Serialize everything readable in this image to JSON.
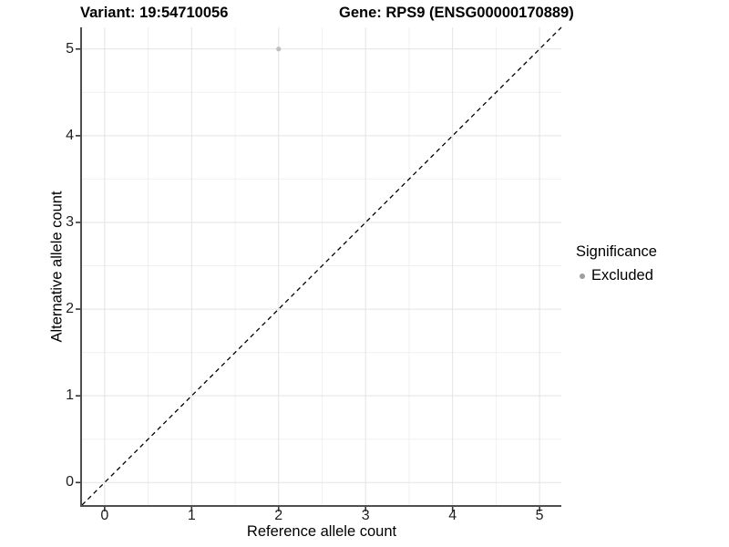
{
  "title": {
    "variant": "Variant: 19:54710056",
    "gene": "Gene: RPS9 (ENSG00000170889)"
  },
  "axes": {
    "x_label": "Reference allele count",
    "y_label": "Alternative allele count"
  },
  "legend": {
    "title": "Significance",
    "items": [
      {
        "label": "Excluded",
        "marker_color": "#9e9e9e"
      }
    ]
  },
  "colors": {
    "background": "#ffffff",
    "grid_major": "#e3e3e3",
    "grid_minor": "#f0f0f0",
    "axis_line": "#4f4f4f",
    "tick_mark": "#333333",
    "tick_label": "#1f1f1f",
    "identity_line": "#000000"
  },
  "chart_data": {
    "type": "scatter",
    "title": "Variant: 19:54710056    Gene: RPS9 (ENSG00000170889)",
    "xlabel": "Reference allele count",
    "ylabel": "Alternative allele count",
    "xlim": [
      -0.26,
      5.25
    ],
    "ylim": [
      -0.26,
      5.25
    ],
    "x_ticks": [
      0,
      1,
      2,
      3,
      4,
      5
    ],
    "y_ticks": [
      0,
      1,
      2,
      3,
      4,
      5
    ],
    "grid": true,
    "minor_grid": true,
    "legend_position": "right",
    "series": [
      {
        "name": "Excluded",
        "color": "#bfbfbf",
        "points": [
          {
            "x": 2,
            "y": 5
          }
        ]
      }
    ],
    "reference_line": {
      "type": "identity y=x",
      "style": "dashed",
      "color": "#000000"
    }
  }
}
